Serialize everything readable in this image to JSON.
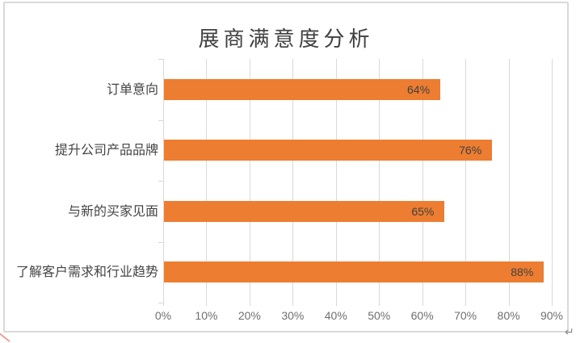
{
  "page": {
    "paragraph_mark": "↵"
  },
  "chart_data": {
    "type": "bar",
    "orientation": "horizontal",
    "title": "展商满意度分析",
    "categories": [
      "订单意向",
      "提升公司产品品牌",
      "与新的买家见面",
      "了解客户需求和行业趋势"
    ],
    "values": [
      64,
      76,
      65,
      88
    ],
    "data_labels": [
      "64%",
      "76%",
      "65%",
      "88%"
    ],
    "x_ticks": [
      0,
      10,
      20,
      30,
      40,
      50,
      60,
      70,
      80,
      90
    ],
    "x_tick_labels": [
      "0%",
      "10%",
      "20%",
      "30%",
      "40%",
      "50%",
      "60%",
      "70%",
      "80%",
      "90%"
    ],
    "xlim": [
      0,
      90
    ],
    "xlabel": "",
    "ylabel": "",
    "grid": "vertical-gridlines-on",
    "legend": "none",
    "colors": {
      "bar": "#ED7D31",
      "gridline": "#D9D9D9",
      "frame_border": "#D9D9D9",
      "title_text": "#404040",
      "category_text": "#444444",
      "data_label_text": "#3f3f3f",
      "tick_label_text": "#6f6f6f"
    }
  }
}
